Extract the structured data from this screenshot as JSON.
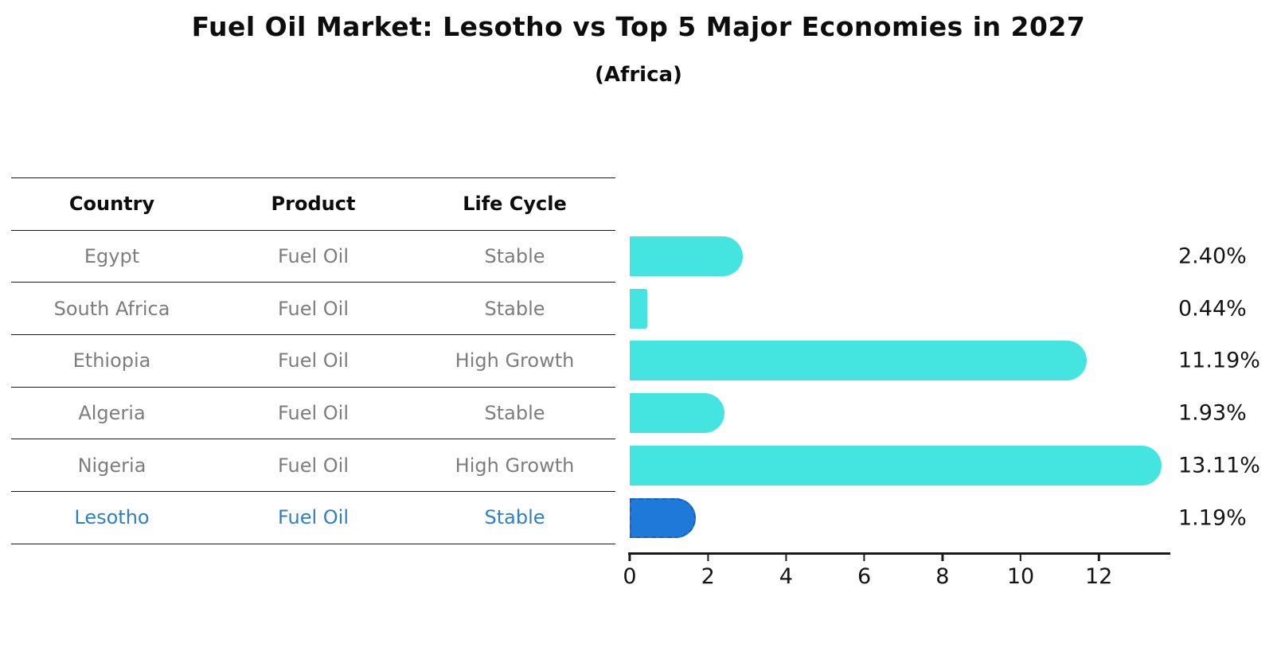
{
  "title": "Fuel Oil Market: Lesotho vs Top 5 Major Economies in 2027",
  "subtitle": "(Africa)",
  "table": {
    "headers": [
      "Country",
      "Product",
      "Life Cycle"
    ],
    "rows": [
      {
        "country": "Egypt",
        "product": "Fuel Oil",
        "life_cycle": "Stable",
        "highlight": false
      },
      {
        "country": "South Africa",
        "product": "Fuel Oil",
        "life_cycle": "Stable",
        "highlight": false
      },
      {
        "country": "Ethiopia",
        "product": "Fuel Oil",
        "life_cycle": "High Growth",
        "highlight": false
      },
      {
        "country": "Algeria",
        "product": "Fuel Oil",
        "life_cycle": "Stable",
        "highlight": false
      },
      {
        "country": "Nigeria",
        "product": "Fuel Oil",
        "life_cycle": "High Growth",
        "highlight": false
      },
      {
        "country": "Lesotho",
        "product": "Fuel Oil",
        "life_cycle": "Stable",
        "highlight": true
      }
    ]
  },
  "chart_data": {
    "type": "bar",
    "orientation": "horizontal",
    "categories": [
      "Egypt",
      "South Africa",
      "Ethiopia",
      "Algeria",
      "Nigeria",
      "Lesotho"
    ],
    "values": [
      2.4,
      0.44,
      11.19,
      1.93,
      13.11,
      1.19
    ],
    "value_labels": [
      "2.40%",
      "0.44%",
      "11.19%",
      "1.93%",
      "13.11%",
      "1.19%"
    ],
    "x_ticks": [
      "0",
      "2",
      "4",
      "6",
      "8",
      "10",
      "12"
    ],
    "x_tick_values": [
      0,
      2,
      4,
      6,
      8,
      10,
      12
    ],
    "xlim": [
      0,
      13.8
    ],
    "grid": false,
    "legend": "none",
    "bar_color": "#44E5E0",
    "highlight_index": 5,
    "highlight_color": "#1E79D8",
    "highlight_border_color": "#1462BD"
  },
  "colors": {
    "text_dark": "#0d0d0d",
    "text_gray": "#7d7d7d",
    "text_blue": "#2e80c4",
    "line": "#1a1a1a"
  }
}
